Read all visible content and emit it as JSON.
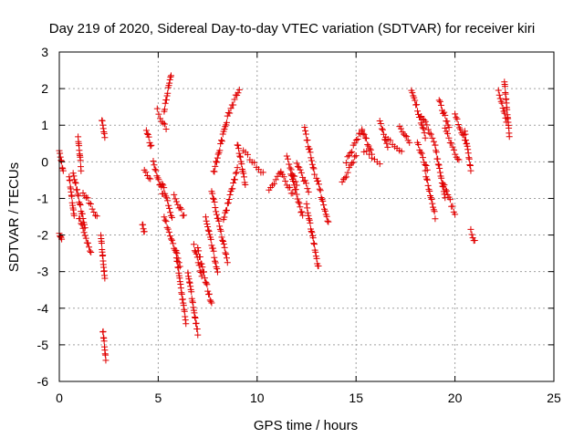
{
  "chart_data": {
    "type": "scatter",
    "title": "Day 219 of 2020, Sidereal Day-to-day VTEC variation (SDTVAR) for receiver kiri",
    "xlabel": "GPS time / hours",
    "ylabel": "SDTVAR / TECUs",
    "xlim": [
      0,
      25
    ],
    "ylim": [
      -6,
      3
    ],
    "xticks": [
      0,
      5,
      10,
      15,
      20,
      25
    ],
    "yticks": [
      -6,
      -5,
      -4,
      -3,
      -2,
      -1,
      0,
      1,
      2,
      3
    ],
    "xtick_labels": [
      "0",
      "5",
      "10",
      "15",
      "20",
      "25"
    ],
    "ytick_labels": [
      "-6",
      "-5",
      "-4",
      "-3",
      "-2",
      "-1",
      "0",
      "1",
      "2",
      "3"
    ],
    "grid": true,
    "marker": "+",
    "color": "#e00000",
    "segments": [
      {
        "x": [
          0.0,
          0.2
        ],
        "y": [
          0.3,
          -0.3
        ]
      },
      {
        "x": [
          0.0,
          0.12
        ],
        "y": [
          -1.95,
          -2.1
        ]
      },
      {
        "x": [
          0.5,
          0.75
        ],
        "y": [
          -0.4,
          -1.5
        ]
      },
      {
        "x": [
          0.7,
          1.3
        ],
        "y": [
          -0.3,
          -1.8
        ]
      },
      {
        "x": [
          1.2,
          1.9
        ],
        "y": [
          -0.8,
          -1.5
        ]
      },
      {
        "x": [
          1.0,
          1.6
        ],
        "y": [
          -1.5,
          -2.5
        ]
      },
      {
        "x": [
          0.95,
          1.1
        ],
        "y": [
          0.7,
          -0.2
        ]
      },
      {
        "x": [
          2.15,
          2.3
        ],
        "y": [
          1.15,
          0.65
        ]
      },
      {
        "x": [
          2.1,
          2.3
        ],
        "y": [
          -2.0,
          -3.2
        ]
      },
      {
        "x": [
          2.2,
          2.35
        ],
        "y": [
          -4.6,
          -5.4
        ]
      },
      {
        "x": [
          4.3,
          4.6
        ],
        "y": [
          -0.2,
          -0.5
        ]
      },
      {
        "x": [
          4.4,
          4.65
        ],
        "y": [
          0.9,
          0.4
        ]
      },
      {
        "x": [
          4.2,
          4.3
        ],
        "y": [
          -1.7,
          -1.9
        ]
      },
      {
        "x": [
          4.75,
          5.25
        ],
        "y": [
          0.0,
          -0.9
        ]
      },
      {
        "x": [
          4.95,
          5.4
        ],
        "y": [
          1.4,
          0.9
        ]
      },
      {
        "x": [
          5.3,
          5.65
        ],
        "y": [
          1.4,
          2.4
        ]
      },
      {
        "x": [
          5.2,
          5.7
        ],
        "y": [
          -0.6,
          -1.5
        ]
      },
      {
        "x": [
          5.3,
          6.1
        ],
        "y": [
          -1.5,
          -2.8
        ]
      },
      {
        "x": [
          5.8,
          6.3
        ],
        "y": [
          -0.9,
          -1.5
        ]
      },
      {
        "x": [
          5.9,
          6.4
        ],
        "y": [
          -2.5,
          -4.4
        ]
      },
      {
        "x": [
          6.5,
          7.0
        ],
        "y": [
          -3.0,
          -4.7
        ]
      },
      {
        "x": [
          6.8,
          7.2
        ],
        "y": [
          -2.3,
          -3.1
        ]
      },
      {
        "x": [
          7.0,
          7.7
        ],
        "y": [
          -2.4,
          -3.9
        ]
      },
      {
        "x": [
          7.4,
          8.0
        ],
        "y": [
          -1.5,
          -3.0
        ]
      },
      {
        "x": [
          7.7,
          8.5
        ],
        "y": [
          -0.8,
          -2.7
        ]
      },
      {
        "x": [
          7.8,
          8.5
        ],
        "y": [
          -0.3,
          1.2
        ]
      },
      {
        "x": [
          8.55,
          9.1
        ],
        "y": [
          1.3,
          2.0
        ]
      },
      {
        "x": [
          8.3,
          9.0
        ],
        "y": [
          -1.6,
          -0.2
        ]
      },
      {
        "x": [
          9.0,
          9.4
        ],
        "y": [
          0.5,
          -0.6
        ]
      },
      {
        "x": [
          9.3,
          10.3
        ],
        "y": [
          0.3,
          -0.3
        ]
      },
      {
        "x": [
          10.6,
          11.2
        ],
        "y": [
          -0.8,
          -0.3
        ]
      },
      {
        "x": [
          11.2,
          11.8
        ],
        "y": [
          -0.3,
          -0.9
        ]
      },
      {
        "x": [
          11.5,
          12.0
        ],
        "y": [
          0.1,
          -0.6
        ]
      },
      {
        "x": [
          11.7,
          12.3
        ],
        "y": [
          -0.3,
          -1.5
        ]
      },
      {
        "x": [
          12.0,
          12.6
        ],
        "y": [
          0.0,
          -0.8
        ]
      },
      {
        "x": [
          12.4,
          12.9
        ],
        "y": [
          0.9,
          -0.3
        ]
      },
      {
        "x": [
          12.5,
          13.1
        ],
        "y": [
          -1.2,
          -2.9
        ]
      },
      {
        "x": [
          13.0,
          13.6
        ],
        "y": [
          -0.4,
          -1.7
        ]
      },
      {
        "x": [
          14.3,
          15.0
        ],
        "y": [
          -0.6,
          0.2
        ]
      },
      {
        "x": [
          14.5,
          15.3
        ],
        "y": [
          0.0,
          0.9
        ]
      },
      {
        "x": [
          15.3,
          15.8
        ],
        "y": [
          0.9,
          0.2
        ]
      },
      {
        "x": [
          15.4,
          16.2
        ],
        "y": [
          0.3,
          0.0
        ]
      },
      {
        "x": [
          16.2,
          16.6
        ],
        "y": [
          1.1,
          0.4
        ]
      },
      {
        "x": [
          16.5,
          17.3
        ],
        "y": [
          0.7,
          0.3
        ]
      },
      {
        "x": [
          17.2,
          17.7
        ],
        "y": [
          1.0,
          0.5
        ]
      },
      {
        "x": [
          17.8,
          18.5
        ],
        "y": [
          2.0,
          0.7
        ]
      },
      {
        "x": [
          18.3,
          19.0
        ],
        "y": [
          1.3,
          0.5
        ]
      },
      {
        "x": [
          18.1,
          18.6
        ],
        "y": [
          0.5,
          -0.2
        ]
      },
      {
        "x": [
          18.5,
          19.0
        ],
        "y": [
          -0.3,
          -1.5
        ]
      },
      {
        "x": [
          19.2,
          19.7
        ],
        "y": [
          1.7,
          0.9
        ]
      },
      {
        "x": [
          19.0,
          19.5
        ],
        "y": [
          0.4,
          -1.0
        ]
      },
      {
        "x": [
          19.4,
          20.0
        ],
        "y": [
          -0.6,
          -1.4
        ]
      },
      {
        "x": [
          19.5,
          20.2
        ],
        "y": [
          0.9,
          0.0
        ]
      },
      {
        "x": [
          20.0,
          20.5
        ],
        "y": [
          1.3,
          0.6
        ]
      },
      {
        "x": [
          20.5,
          20.8
        ],
        "y": [
          0.8,
          -0.2
        ]
      },
      {
        "x": [
          20.8,
          21.0
        ],
        "y": [
          -1.9,
          -2.2
        ]
      },
      {
        "x": [
          22.2,
          22.6
        ],
        "y": [
          1.9,
          1.1
        ]
      },
      {
        "x": [
          22.5,
          22.75
        ],
        "y": [
          2.2,
          0.7
        ]
      }
    ]
  }
}
